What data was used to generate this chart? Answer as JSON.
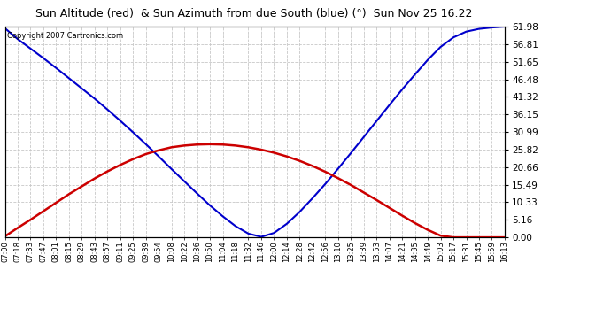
{
  "title": "Sun Altitude (red)  & Sun Azimuth from due South (blue) (°)  Sun Nov 25 16:22",
  "copyright_text": "Copyright 2007 Cartronics.com",
  "background_color": "#ffffff",
  "plot_bg_color": "#ffffff",
  "grid_color": "#c8c8c8",
  "line_red_color": "#cc0000",
  "line_blue_color": "#0000cc",
  "ymin": 0.0,
  "ymax": 61.98,
  "yticks": [
    0.0,
    5.16,
    10.33,
    15.49,
    20.66,
    25.82,
    30.99,
    36.15,
    41.32,
    46.48,
    51.65,
    56.81,
    61.98
  ],
  "time_labels": [
    "07:00",
    "07:18",
    "07:33",
    "07:47",
    "08:01",
    "08:15",
    "08:29",
    "08:43",
    "08:57",
    "09:11",
    "09:25",
    "09:39",
    "09:54",
    "10:08",
    "10:22",
    "10:36",
    "10:50",
    "11:04",
    "11:18",
    "11:32",
    "11:46",
    "12:00",
    "12:14",
    "12:28",
    "12:42",
    "12:56",
    "13:10",
    "13:25",
    "13:39",
    "13:53",
    "14:07",
    "14:21",
    "14:35",
    "14:49",
    "15:03",
    "15:17",
    "15:31",
    "15:45",
    "15:59",
    "16:13"
  ],
  "altitude_values": [
    0.3,
    2.8,
    5.2,
    7.7,
    10.2,
    12.7,
    15.0,
    17.3,
    19.4,
    21.3,
    23.0,
    24.5,
    25.6,
    26.5,
    27.0,
    27.3,
    27.4,
    27.3,
    27.0,
    26.5,
    25.8,
    24.9,
    23.8,
    22.5,
    21.0,
    19.3,
    17.4,
    15.4,
    13.2,
    11.0,
    8.7,
    6.4,
    4.2,
    2.2,
    0.5,
    0.0,
    0.0,
    0.0,
    0.0,
    0.0
  ],
  "azimuth_values": [
    61.5,
    58.3,
    55.5,
    52.7,
    49.8,
    46.8,
    43.8,
    40.8,
    37.6,
    34.3,
    30.9,
    27.4,
    23.8,
    20.1,
    16.5,
    12.9,
    9.4,
    6.2,
    3.3,
    1.1,
    0.15,
    1.3,
    4.0,
    7.5,
    11.5,
    15.7,
    20.2,
    24.8,
    29.5,
    34.2,
    38.9,
    43.5,
    47.9,
    52.2,
    56.0,
    58.8,
    60.5,
    61.3,
    61.7,
    61.98
  ]
}
